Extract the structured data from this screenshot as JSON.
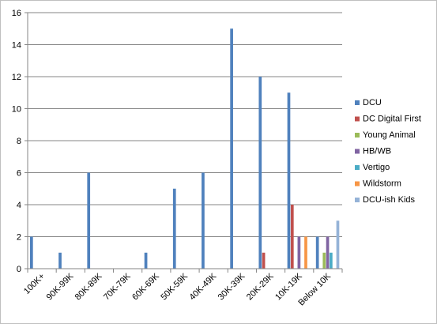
{
  "chart_data": {
    "type": "bar",
    "title": "",
    "xlabel": "",
    "ylabel": "",
    "ylim": [
      0,
      16
    ],
    "yticks": [
      0,
      2,
      4,
      6,
      8,
      10,
      12,
      14,
      16
    ],
    "grid": true,
    "legend_position": "right",
    "categories": [
      "100K+",
      "90K-99K",
      "80K-89K",
      "70K-79K",
      "60K-69K",
      "50K-59K",
      "40K-49K",
      "30K-39K",
      "20K-29K",
      "10K-19K",
      "Below 10K"
    ],
    "series": [
      {
        "name": "DCU",
        "color": "#4F81BD",
        "values": [
          2,
          1,
          6,
          0,
          1,
          5,
          6,
          15,
          12,
          11,
          2
        ]
      },
      {
        "name": "DC Digital First",
        "color": "#C0504D",
        "values": [
          0,
          0,
          0,
          0,
          0,
          0,
          0,
          0,
          1,
          4,
          0
        ]
      },
      {
        "name": "Young Animal",
        "color": "#9BBB59",
        "values": [
          0,
          0,
          0,
          0,
          0,
          0,
          0,
          0,
          0,
          0,
          1
        ]
      },
      {
        "name": "HB/WB",
        "color": "#8064A2",
        "values": [
          0,
          0,
          0,
          0,
          0,
          0,
          0,
          0,
          0,
          2,
          2
        ]
      },
      {
        "name": "Vertigo",
        "color": "#4BACC6",
        "values": [
          0,
          0,
          0,
          0,
          0,
          0,
          0,
          0,
          0,
          0,
          1
        ]
      },
      {
        "name": "Wildstorm",
        "color": "#F79646",
        "values": [
          0,
          0,
          0,
          0,
          0,
          0,
          0,
          0,
          0,
          2,
          0
        ]
      },
      {
        "name": "DCU-ish Kids",
        "color": "#95B3D7",
        "values": [
          0,
          0,
          0,
          0,
          0,
          0,
          0,
          0,
          0,
          0,
          3
        ]
      }
    ]
  }
}
